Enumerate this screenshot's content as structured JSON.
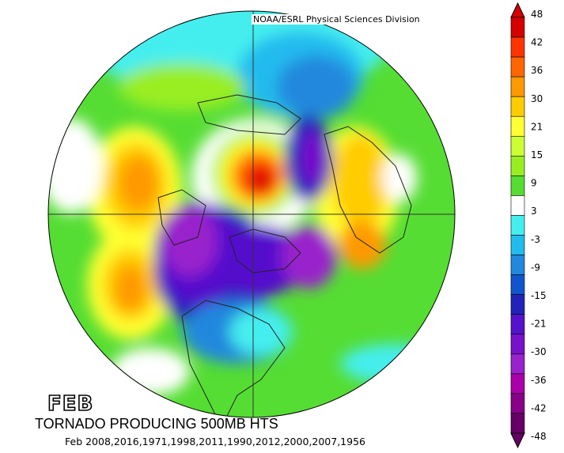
{
  "credit": "NOAA/ESRL Physical Sciences Division",
  "month_label": "FEB",
  "title": "TORNADO PRODUCING 500MB HTS",
  "years_line": "Feb  2008,2016,1971,1998,2011,1990,2012,2000,2007,1956",
  "colorbar": {
    "labels": [
      "48",
      "42",
      "36",
      "30",
      "21",
      "15",
      "9",
      "3",
      "-3",
      "-9",
      "-15",
      "-21",
      "-30",
      "-36",
      "-42",
      "-48"
    ],
    "colors": [
      "#d40000",
      "#ff3300",
      "#ff6600",
      "#ff9900",
      "#ffcc00",
      "#ffff33",
      "#ccff33",
      "#99ee22",
      "#55dd33",
      "#ffffff",
      "#44eeee",
      "#22bbee",
      "#2288dd",
      "#1155cc",
      "#2222bb",
      "#5511cc",
      "#7711cc",
      "#9922cc",
      "#aa00aa",
      "#880088",
      "#660066"
    ]
  },
  "map": {
    "projection": "north-polar-stereographic",
    "field": "500mb height anomaly"
  }
}
